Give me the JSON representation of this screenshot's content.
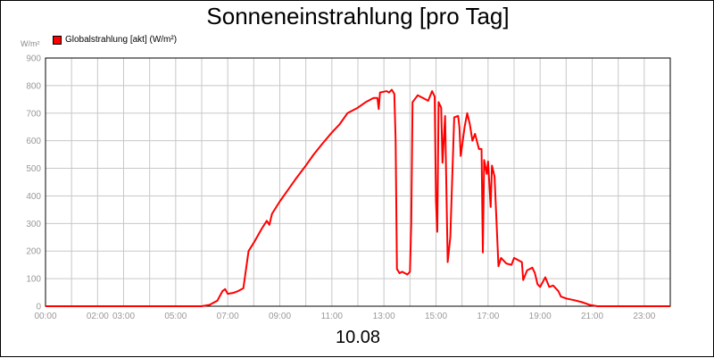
{
  "chart_data": {
    "type": "line",
    "title": "Sonneneinstrahlung [pro Tag]",
    "ylabel": "W/m²",
    "date_label": "10.08",
    "legend": {
      "label": "Globalstrahlung [akt] (W/m²)",
      "placement": "top-left"
    },
    "grid": true,
    "xlim": [
      0,
      24
    ],
    "ylim": [
      0,
      900
    ],
    "y_ticks": [
      0,
      100,
      200,
      300,
      400,
      500,
      600,
      700,
      800,
      900
    ],
    "x_ticks": [
      {
        "label": "00:00",
        "x": 0
      },
      {
        "label": "02:00",
        "x": 2
      },
      {
        "label": "03:00",
        "x": 3
      },
      {
        "label": "05:00",
        "x": 5
      },
      {
        "label": "07:00",
        "x": 7
      },
      {
        "label": "09:00",
        "x": 9
      },
      {
        "label": "11:00",
        "x": 11
      },
      {
        "label": "13:00",
        "x": 13
      },
      {
        "label": "15:00",
        "x": 15
      },
      {
        "label": "17:00",
        "x": 17
      },
      {
        "label": "19:00",
        "x": 19
      },
      {
        "label": "21:00",
        "x": 21
      },
      {
        "label": "23:00",
        "x": 23
      }
    ],
    "series": [
      {
        "name": "Globalstrahlung [akt] (W/m²)",
        "color": "#ff0000",
        "points": [
          [
            0,
            0
          ],
          [
            6.0,
            0
          ],
          [
            6.3,
            5
          ],
          [
            6.6,
            20
          ],
          [
            6.8,
            55
          ],
          [
            6.9,
            62
          ],
          [
            7.0,
            45
          ],
          [
            7.2,
            48
          ],
          [
            7.4,
            55
          ],
          [
            7.6,
            65
          ],
          [
            7.8,
            200
          ],
          [
            8.0,
            230
          ],
          [
            8.3,
            280
          ],
          [
            8.5,
            310
          ],
          [
            8.6,
            295
          ],
          [
            8.7,
            335
          ],
          [
            9.0,
            380
          ],
          [
            9.3,
            420
          ],
          [
            9.6,
            460
          ],
          [
            10.0,
            510
          ],
          [
            10.3,
            550
          ],
          [
            10.6,
            585
          ],
          [
            11.0,
            630
          ],
          [
            11.3,
            660
          ],
          [
            11.6,
            700
          ],
          [
            12.0,
            720
          ],
          [
            12.3,
            740
          ],
          [
            12.6,
            755
          ],
          [
            12.75,
            755
          ],
          [
            12.8,
            715
          ],
          [
            12.85,
            775
          ],
          [
            13.0,
            778
          ],
          [
            13.1,
            780
          ],
          [
            13.2,
            775
          ],
          [
            13.3,
            785
          ],
          [
            13.4,
            770
          ],
          [
            13.45,
            600
          ],
          [
            13.5,
            135
          ],
          [
            13.6,
            120
          ],
          [
            13.7,
            125
          ],
          [
            13.9,
            115
          ],
          [
            14.0,
            125
          ],
          [
            14.05,
            300
          ],
          [
            14.1,
            740
          ],
          [
            14.3,
            765
          ],
          [
            14.5,
            755
          ],
          [
            14.7,
            745
          ],
          [
            14.85,
            780
          ],
          [
            14.95,
            760
          ],
          [
            15.0,
            380
          ],
          [
            15.05,
            270
          ],
          [
            15.1,
            740
          ],
          [
            15.2,
            720
          ],
          [
            15.25,
            520
          ],
          [
            15.35,
            690
          ],
          [
            15.45,
            160
          ],
          [
            15.55,
            250
          ],
          [
            15.7,
            685
          ],
          [
            15.85,
            690
          ],
          [
            15.9,
            650
          ],
          [
            15.95,
            545
          ],
          [
            16.1,
            650
          ],
          [
            16.2,
            700
          ],
          [
            16.3,
            660
          ],
          [
            16.4,
            600
          ],
          [
            16.5,
            625
          ],
          [
            16.65,
            570
          ],
          [
            16.75,
            570
          ],
          [
            16.8,
            195
          ],
          [
            16.85,
            530
          ],
          [
            16.95,
            480
          ],
          [
            17.0,
            525
          ],
          [
            17.1,
            360
          ],
          [
            17.15,
            510
          ],
          [
            17.25,
            470
          ],
          [
            17.4,
            145
          ],
          [
            17.5,
            175
          ],
          [
            17.7,
            155
          ],
          [
            17.9,
            150
          ],
          [
            18.0,
            175
          ],
          [
            18.2,
            165
          ],
          [
            18.3,
            160
          ],
          [
            18.35,
            95
          ],
          [
            18.5,
            130
          ],
          [
            18.7,
            140
          ],
          [
            18.8,
            120
          ],
          [
            18.9,
            80
          ],
          [
            19.0,
            70
          ],
          [
            19.2,
            105
          ],
          [
            19.35,
            70
          ],
          [
            19.5,
            75
          ],
          [
            19.7,
            55
          ],
          [
            19.8,
            35
          ],
          [
            20.0,
            28
          ],
          [
            20.3,
            22
          ],
          [
            20.6,
            15
          ],
          [
            20.9,
            5
          ],
          [
            21.2,
            0
          ],
          [
            24.0,
            0
          ]
        ]
      }
    ]
  }
}
